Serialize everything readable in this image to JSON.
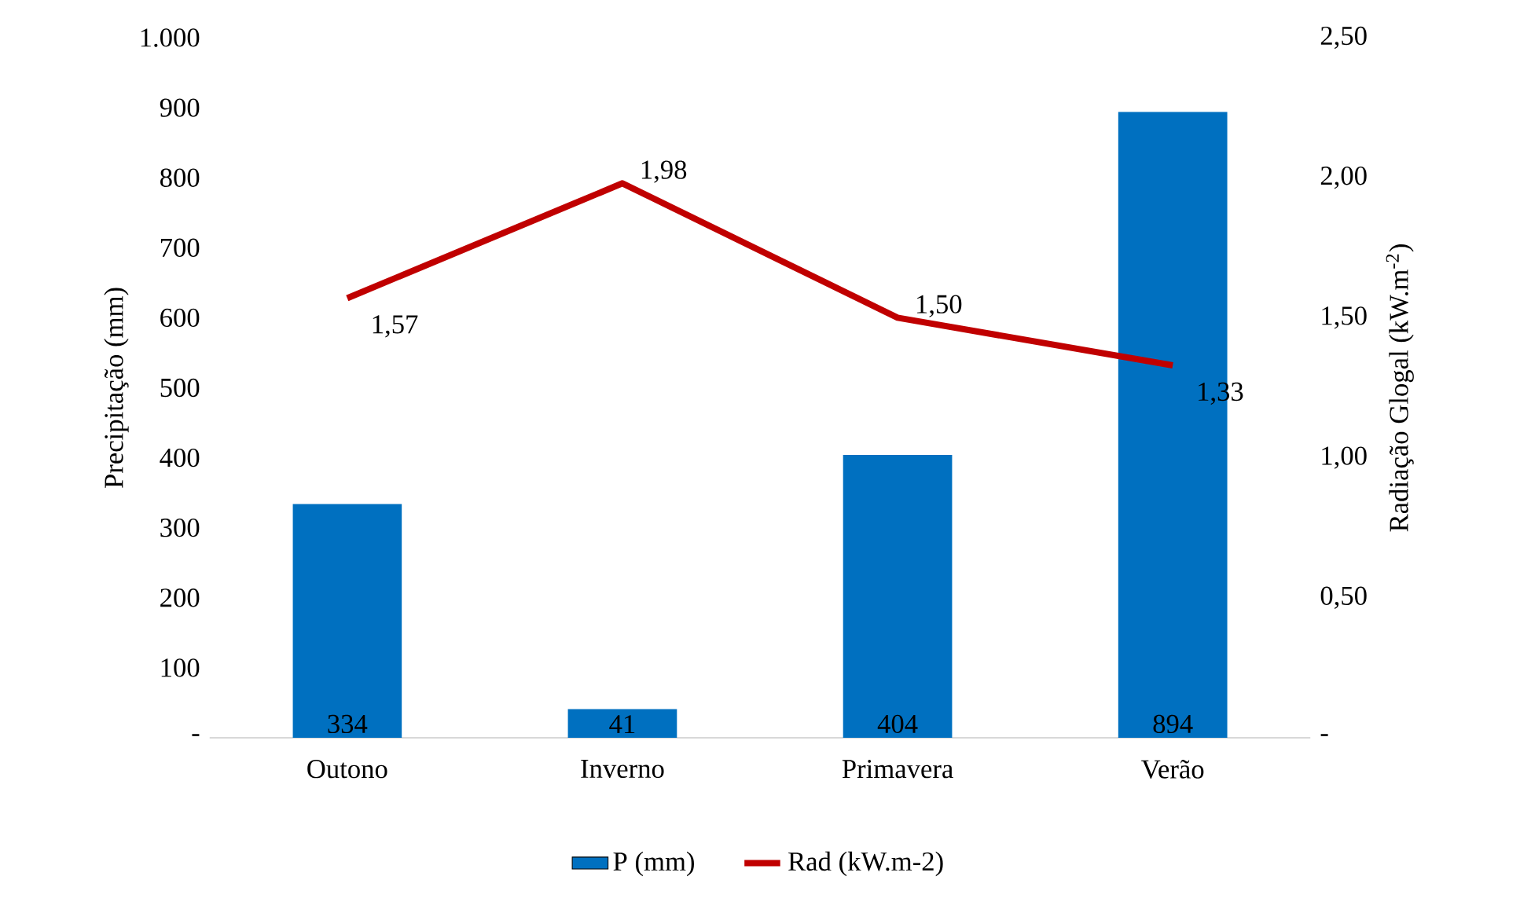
{
  "chart_data": {
    "type": "bar",
    "categories": [
      "Outono",
      "Inverno",
      "Primavera",
      "Verão"
    ],
    "ylabel": "Precipitação (mm)",
    "y2label": "Radiação Glogal (kW.m$^{-2}$)",
    "series": [
      {
        "name": "P (mm)",
        "color": "#0070c0",
        "values": [
          334,
          41,
          404,
          894
        ],
        "value_labels": [
          "334",
          "41",
          "404",
          "894"
        ]
      },
      {
        "name": "Rad (kW.m-2)",
        "type": "line",
        "axis": "y2",
        "color": "#c00000",
        "values": [
          1.57,
          1.98,
          1.5,
          1.33
        ],
        "value_labels": [
          "1,57",
          "1,98",
          "1,50",
          "1,33"
        ]
      }
    ],
    "ylim": [
      0,
      1000
    ],
    "yticks": [
      {
        "value": 0,
        "label": "-"
      },
      100,
      200,
      300,
      400,
      500,
      600,
      700,
      800,
      900,
      {
        "value": 1000,
        "label": "1.000"
      }
    ],
    "y2lim": [
      0,
      2.5
    ],
    "y2ticks": [
      {
        "value": 0,
        "label": "-"
      },
      {
        "value": 0.5,
        "label": "0,50"
      },
      {
        "value": 1,
        "label": "1,00"
      },
      {
        "value": 1.5,
        "label": "1,50"
      },
      {
        "value": 2,
        "label": "2,00"
      },
      {
        "value": 2.5,
        "label": "2,50"
      }
    ],
    "legend": "bottom",
    "grid": false,
    "marker": "none",
    "line_style": "solid"
  }
}
